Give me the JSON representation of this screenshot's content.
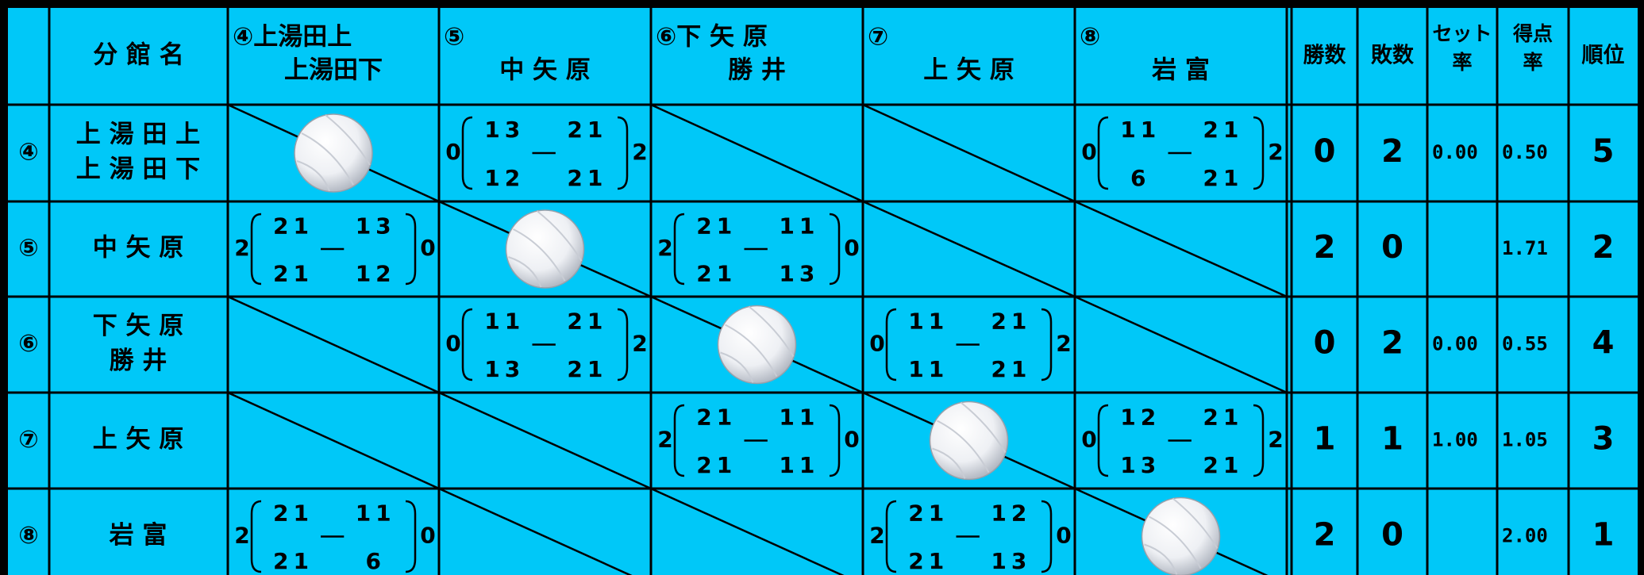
{
  "header": [
    "",
    [
      "分 館 名"
    ],
    [
      "④上湯田上",
      "上湯田下"
    ],
    [
      "⑤",
      "中 矢 原"
    ],
    [
      "⑥下 矢 原",
      "勝 井"
    ],
    [
      "⑦",
      "上 矢 原"
    ],
    [
      "⑧",
      "岩 富"
    ],
    [
      "勝数"
    ],
    [
      "敗数"
    ],
    [
      "セット",
      "率"
    ],
    [
      "得点",
      "率"
    ],
    [
      "順位"
    ]
  ],
  "rows": [
    {
      "no": "④",
      "name": [
        "上 湯 田 上",
        "上 湯 田 下"
      ],
      "cells": [
        {
          "ball": true
        },
        {
          "score": {
            "left": 0,
            "top": [
              13,
              21
            ],
            "bottom": [
              12,
              21
            ],
            "right": 2
          }
        },
        null,
        null,
        {
          "score": {
            "left": 0,
            "top": [
              11,
              21
            ],
            "bottom": [
              6,
              21
            ],
            "right": 2
          }
        }
      ],
      "wins": 0,
      "losses": 2,
      "set_rate": "0.00",
      "point_rate": "0.50",
      "rank": 5
    },
    {
      "no": "⑤",
      "name": [
        "中 矢 原"
      ],
      "cells": [
        {
          "score": {
            "left": 2,
            "top": [
              21,
              13
            ],
            "bottom": [
              21,
              12
            ],
            "right": 0
          }
        },
        {
          "ball": true
        },
        {
          "score": {
            "left": 2,
            "top": [
              21,
              11
            ],
            "bottom": [
              21,
              13
            ],
            "right": 0
          }
        },
        null,
        null
      ],
      "wins": 2,
      "losses": 0,
      "set_rate": null,
      "point_rate": "1.71",
      "rank": 2
    },
    {
      "no": "⑥",
      "name": [
        "下 矢 原",
        "勝 井"
      ],
      "cells": [
        null,
        {
          "score": {
            "left": 0,
            "top": [
              11,
              21
            ],
            "bottom": [
              13,
              21
            ],
            "right": 2
          }
        },
        {
          "ball": true
        },
        {
          "score": {
            "left": 0,
            "top": [
              11,
              21
            ],
            "bottom": [
              11,
              21
            ],
            "right": 2
          }
        },
        null
      ],
      "wins": 0,
      "losses": 2,
      "set_rate": "0.00",
      "point_rate": "0.55",
      "rank": 4
    },
    {
      "no": "⑦",
      "name": [
        "上 矢 原"
      ],
      "cells": [
        null,
        null,
        {
          "score": {
            "left": 2,
            "top": [
              21,
              11
            ],
            "bottom": [
              21,
              11
            ],
            "right": 0
          }
        },
        {
          "ball": true
        },
        {
          "score": {
            "left": 0,
            "top": [
              12,
              21
            ],
            "bottom": [
              13,
              21
            ],
            "right": 2
          }
        }
      ],
      "wins": 1,
      "losses": 1,
      "set_rate": "1.00",
      "point_rate": "1.05",
      "rank": 3
    },
    {
      "no": "⑧",
      "name": [
        "岩 富"
      ],
      "cells": [
        {
          "score": {
            "left": 2,
            "top": [
              21,
              11
            ],
            "bottom": [
              21,
              6
            ],
            "right": 0
          }
        },
        null,
        null,
        {
          "score": {
            "left": 2,
            "top": [
              21,
              12
            ],
            "bottom": [
              21,
              13
            ],
            "right": 0
          }
        },
        {
          "ball": true
        }
      ],
      "wins": 2,
      "losses": 0,
      "set_rate": null,
      "point_rate": "2.00",
      "rank": 1
    }
  ]
}
